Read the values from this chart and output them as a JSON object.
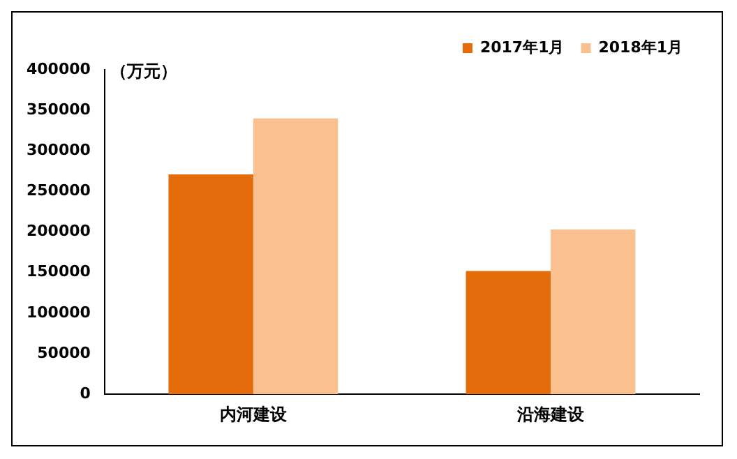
{
  "chart_data": {
    "type": "bar",
    "ylabel": "（万元）",
    "categories": [
      "内河建设",
      "沿海建设"
    ],
    "series": [
      {
        "name": "2017年1月",
        "color": "#e46c0a",
        "values": [
          271000,
          152000
        ]
      },
      {
        "name": "2018年1月",
        "color": "#fac090",
        "values": [
          340000,
          203000
        ]
      }
    ],
    "ylim": [
      0,
      400000
    ],
    "yticks": [
      0,
      50000,
      100000,
      150000,
      200000,
      250000,
      300000,
      350000,
      400000
    ],
    "grid": false,
    "legend": "top right"
  }
}
